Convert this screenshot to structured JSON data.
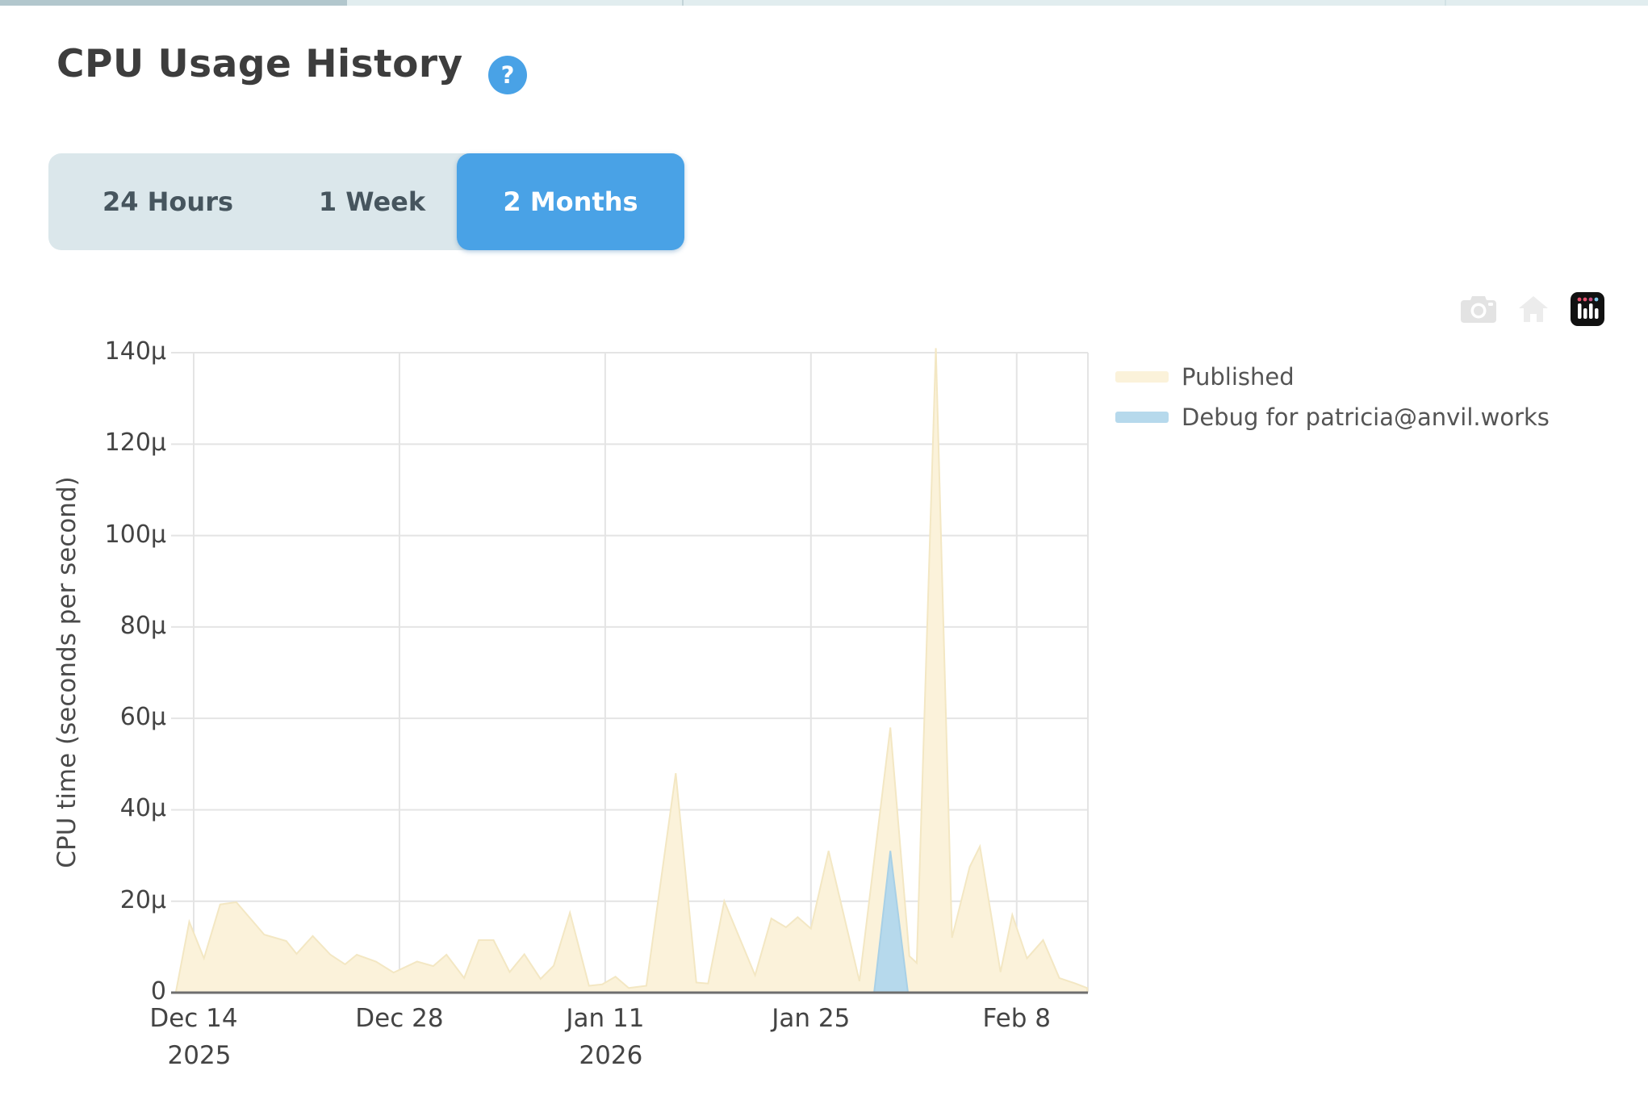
{
  "header": {
    "title": "CPU Usage History",
    "help_label": "?"
  },
  "time_range_tabs": {
    "options": [
      {
        "label": "24 Hours",
        "selected": false
      },
      {
        "label": "1 Week",
        "selected": false
      },
      {
        "label": "2 Months",
        "selected": true
      }
    ],
    "selected_color": "#49a2e6"
  },
  "modebar": {
    "icons": [
      "camera",
      "home",
      "plotly-logo"
    ]
  },
  "colors": {
    "accent_blue": "#49a2e6",
    "published_fill": "#fbf2da",
    "published_stroke": "#f3e7c3",
    "debug_fill": "#b6d9ec",
    "debug_stroke": "#a8d0e6",
    "grid": "#e4e4e4",
    "axis_line": "#6e6e6e",
    "text": "#444444"
  },
  "chart_data": {
    "type": "area",
    "title": "",
    "xlabel": "",
    "ylabel": "CPU time (seconds per second)",
    "ylim": [
      0,
      140
    ],
    "y_unit": "microseconds (µ) per second",
    "yticks": [
      {
        "v": 0,
        "label": "0"
      },
      {
        "v": 20,
        "label": "20µ"
      },
      {
        "v": 40,
        "label": "40µ"
      },
      {
        "v": 60,
        "label": "60µ"
      },
      {
        "v": 80,
        "label": "80µ"
      },
      {
        "v": 100,
        "label": "100µ"
      },
      {
        "v": 120,
        "label": "120µ"
      },
      {
        "v": 140,
        "label": "140µ"
      }
    ],
    "x_axis_note": "x values are days relative to Dec 14 2025",
    "x_range_days": [
      -1.2,
      60.8
    ],
    "xticks": [
      {
        "day": 0,
        "label": "Dec 14",
        "sublabel": "2025"
      },
      {
        "day": 14,
        "label": "Dec 28",
        "sublabel": ""
      },
      {
        "day": 28,
        "label": "Jan 11",
        "sublabel": "2026"
      },
      {
        "day": 42,
        "label": "Jan 25",
        "sublabel": ""
      },
      {
        "day": 56,
        "label": "Feb 8",
        "sublabel": ""
      }
    ],
    "grid": true,
    "legend_position": "top-right",
    "series": [
      {
        "name": "Published",
        "fill": "#fbf2da",
        "stroke": "#f3e7c3",
        "points_day_value": [
          [
            -1.2,
            0.3
          ],
          [
            -0.3,
            15.5
          ],
          [
            0.7,
            7.5
          ],
          [
            1.8,
            19.3
          ],
          [
            2.9,
            19.8
          ],
          [
            4.8,
            12.7
          ],
          [
            6.3,
            11.3
          ],
          [
            7.0,
            8.5
          ],
          [
            8.1,
            12.4
          ],
          [
            9.3,
            8.3
          ],
          [
            10.3,
            6.2
          ],
          [
            11.1,
            8.3
          ],
          [
            12.4,
            6.8
          ],
          [
            13.6,
            4.4
          ],
          [
            15.2,
            6.8
          ],
          [
            16.3,
            5.8
          ],
          [
            17.2,
            8.3
          ],
          [
            18.4,
            3.2
          ],
          [
            19.4,
            11.5
          ],
          [
            20.4,
            11.5
          ],
          [
            21.5,
            4.5
          ],
          [
            22.5,
            8.4
          ],
          [
            23.6,
            3.0
          ],
          [
            24.5,
            5.9
          ],
          [
            25.6,
            17.5
          ],
          [
            26.9,
            1.5
          ],
          [
            27.8,
            1.8
          ],
          [
            28.7,
            3.5
          ],
          [
            29.6,
            1.0
          ],
          [
            30.8,
            1.5
          ],
          [
            32.8,
            48.0
          ],
          [
            34.2,
            2.2
          ],
          [
            35.0,
            2.0
          ],
          [
            36.1,
            20.0
          ],
          [
            38.2,
            3.8
          ],
          [
            39.3,
            16.2
          ],
          [
            40.3,
            14.3
          ],
          [
            41.1,
            16.5
          ],
          [
            42.0,
            14.0
          ],
          [
            43.2,
            31.0
          ],
          [
            45.3,
            2.5
          ],
          [
            47.4,
            58.0
          ],
          [
            48.7,
            8.0
          ],
          [
            49.2,
            6.5
          ],
          [
            50.5,
            141.0
          ],
          [
            51.6,
            12.0
          ],
          [
            52.8,
            27.5
          ],
          [
            53.5,
            32.0
          ],
          [
            54.9,
            4.5
          ],
          [
            55.7,
            17.0
          ],
          [
            56.7,
            7.5
          ],
          [
            57.8,
            11.5
          ],
          [
            58.9,
            3.2
          ],
          [
            60.0,
            2.0
          ],
          [
            60.8,
            1.0
          ]
        ]
      },
      {
        "name": "Debug for patricia@anvil.works",
        "fill": "#b6d9ec",
        "stroke": "#a8d0e6",
        "points_day_value": [
          [
            -1.2,
            0
          ],
          [
            46.3,
            0
          ],
          [
            47.4,
            31.0
          ],
          [
            48.6,
            0
          ],
          [
            60.8,
            0
          ]
        ]
      }
    ]
  }
}
